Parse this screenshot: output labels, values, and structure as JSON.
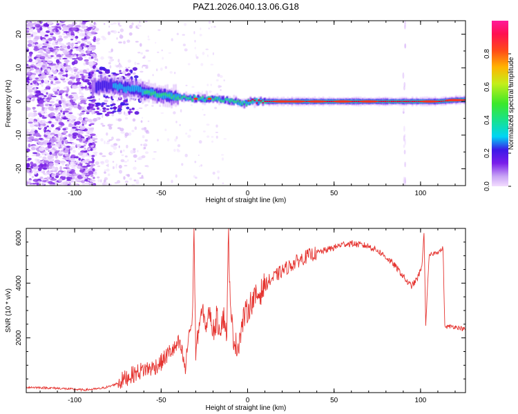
{
  "figure_title": "PAZ1.2026.040.13.06.G18",
  "colors": {
    "snr_line": "#e5332f",
    "axis": "#000000",
    "background": "#ffffff",
    "ridge_core": "#e8003a"
  },
  "chart_data": [
    {
      "type": "heatmap",
      "name": "spectrogram",
      "xlabel": "Height of straight line (km)",
      "ylabel": "Frequency (Hz)",
      "xlim": [
        -128,
        126
      ],
      "ylim": [
        -25,
        24
      ],
      "xticks": [
        -100,
        -50,
        0,
        50,
        100
      ],
      "yticks": [
        -20,
        -10,
        0,
        10,
        20
      ],
      "ridge": {
        "comment": "frequency of spectral peak vs height",
        "x": [
          -88,
          -80,
          -72,
          -64,
          -58,
          -52,
          -46,
          -40,
          -34,
          -28,
          -22,
          -16,
          -10,
          -5,
          -2,
          0,
          2,
          5,
          20,
          40,
          60,
          80,
          95,
          100,
          110,
          115,
          120,
          126
        ],
        "y": [
          4.5,
          5,
          4,
          3.5,
          3,
          2,
          1.5,
          1.2,
          1,
          0.8,
          0.8,
          0.6,
          0.3,
          -0.3,
          -0.7,
          -0.1,
          0,
          0,
          0,
          0,
          0,
          0,
          0,
          0,
          0,
          0.2,
          0.4,
          0.5
        ]
      },
      "colorbar": {
        "label": "Normalized spectral amplitude",
        "range": [
          0,
          1
        ],
        "ticks": [
          "0.0",
          "0.2",
          "0.4",
          "0.6",
          "0.8"
        ],
        "tick_values": [
          0,
          0.2,
          0.4,
          0.6,
          0.8
        ]
      }
    },
    {
      "type": "line",
      "name": "snr",
      "xlabel": "Height of straight line (km)",
      "ylabel": "SNR (10 * v/v)",
      "xlim": [
        -128,
        126
      ],
      "ylim": [
        0,
        6000
      ],
      "xticks": [
        -100,
        -50,
        0,
        50,
        100
      ],
      "yticks": [
        2000,
        4000,
        6000
      ],
      "series": [
        {
          "name": "SNR",
          "x": [
            -128,
            -110,
            -95,
            -90,
            -85,
            -80,
            -75,
            -70,
            -65,
            -60,
            -55,
            -50,
            -45,
            -42,
            -40,
            -38,
            -36,
            -34,
            -32,
            -31,
            -30,
            -28,
            -26,
            -24,
            -22,
            -20,
            -18,
            -16,
            -14,
            -12,
            -11,
            -10,
            -8,
            -6,
            -4,
            -2,
            0,
            2,
            5,
            8,
            10,
            15,
            20,
            25,
            30,
            35,
            40,
            45,
            50,
            55,
            60,
            65,
            70,
            75,
            80,
            85,
            90,
            93,
            95,
            98,
            100,
            101,
            102,
            103,
            105,
            108,
            110,
            112,
            113,
            114,
            118,
            122,
            126
          ],
          "y": [
            200,
            160,
            100,
            120,
            150,
            220,
            350,
            550,
            700,
            850,
            900,
            1100,
            1500,
            1600,
            1800,
            1500,
            800,
            2200,
            2500,
            6100,
            1400,
            2500,
            3000,
            2400,
            3000,
            2200,
            2700,
            2400,
            2800,
            2200,
            6000,
            2900,
            2000,
            1600,
            2200,
            2800,
            3000,
            3300,
            3500,
            3700,
            3950,
            4200,
            4450,
            4650,
            4850,
            5000,
            5100,
            5200,
            5300,
            5420,
            5450,
            5400,
            5350,
            5200,
            4950,
            4650,
            4250,
            3980,
            3900,
            4150,
            4450,
            4750,
            5900,
            2500,
            5000,
            5100,
            5150,
            5200,
            5300,
            2400,
            2420,
            2380,
            2300
          ]
        }
      ]
    }
  ]
}
